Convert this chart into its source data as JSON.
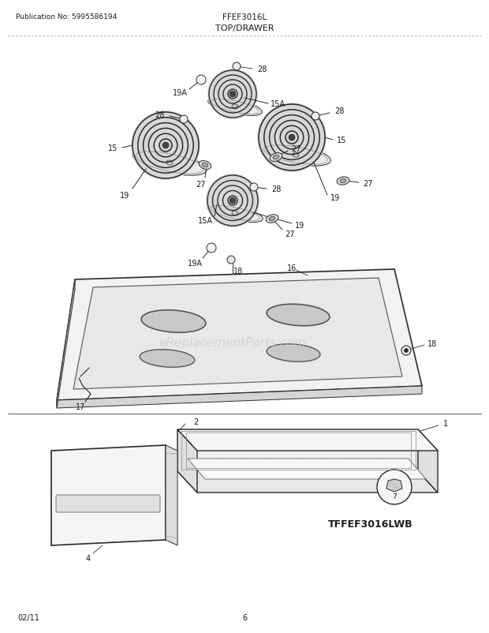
{
  "pub_no": "Publication No: 5995586194",
  "model": "FFEF3016L",
  "section": "TOP/DRAWER",
  "bottom_left": "02/11",
  "bottom_center": "6",
  "bottom_right_model": "TFFEF3016LWB",
  "bg_color": "#ffffff",
  "line_color": "#2a2a2a",
  "text_color": "#1a1a1a",
  "watermark_text": "eReplacementParts.com",
  "watermark_color": "#cccccc"
}
